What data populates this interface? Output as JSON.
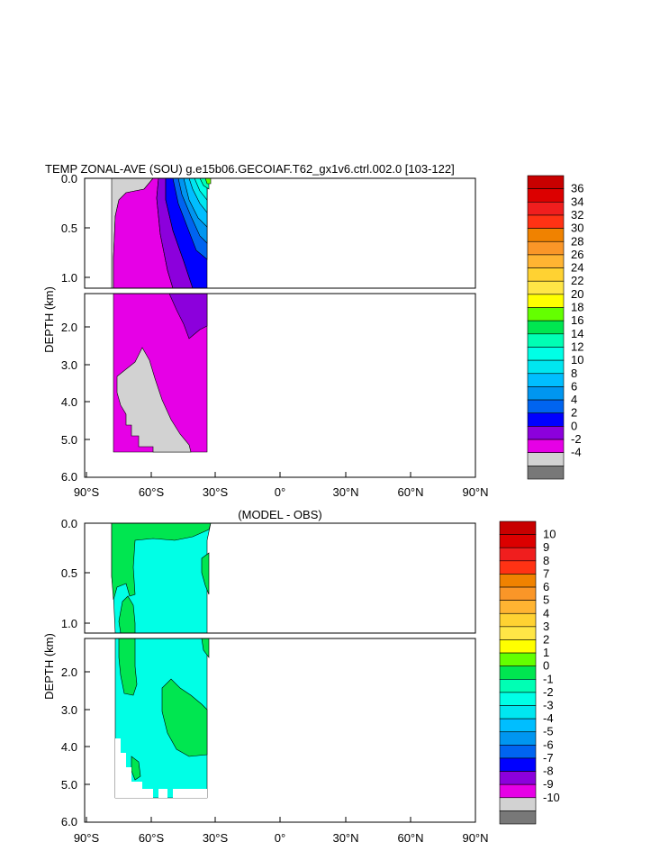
{
  "chart_data": [
    {
      "type": "contour",
      "title": "TEMP ZONAL-AVE (SOU) g.e15b06.GECOIAF.T62_gx1v6.ctrl.002.0 [103-122]",
      "ylabel": "DEPTH (km)",
      "xlabel": "",
      "x_range": [
        -90,
        90
      ],
      "y_range": [
        0,
        6
      ],
      "x_ticks": [
        "90°S",
        "60°S",
        "30°S",
        "0°",
        "30°N",
        "60°N",
        "90°N"
      ],
      "y_ticks_upper": [
        "0.0",
        "0.5",
        "1.0"
      ],
      "y_ticks_lower": [
        "2.0",
        "3.0",
        "4.0",
        "5.0",
        "6.0"
      ],
      "colorbar_levels": [
        "36",
        "34",
        "32",
        "30",
        "28",
        "26",
        "24",
        "22",
        "20",
        "18",
        "16",
        "14",
        "12",
        "10",
        "8",
        "6",
        "4",
        "2",
        "0",
        "-2",
        "-4"
      ],
      "colorbar_colors": [
        "#c80000",
        "#dc0000",
        "#f01e1e",
        "#ff3214",
        "#f08200",
        "#fa9628",
        "#ffb432",
        "#ffd232",
        "#ffe646",
        "#ffff00",
        "#64ff00",
        "#00e650",
        "#00ffb4",
        "#00ffe6",
        "#00e6f0",
        "#00beff",
        "#0096f0",
        "#0064f0",
        "#0000ff",
        "#8c00dc",
        "#e600e6",
        "#d2d2d2",
        "#787878"
      ]
    },
    {
      "type": "contour",
      "title": "(MODEL - OBS)",
      "ylabel": "DEPTH (km)",
      "xlabel": "",
      "x_range": [
        -90,
        90
      ],
      "y_range": [
        0,
        6
      ],
      "x_ticks": [
        "90°S",
        "60°S",
        "30°S",
        "0°",
        "30°N",
        "60°N",
        "90°N"
      ],
      "y_ticks_upper": [
        "0.0",
        "0.5",
        "1.0"
      ],
      "y_ticks_lower": [
        "2.0",
        "3.0",
        "4.0",
        "5.0",
        "6.0"
      ],
      "colorbar_levels": [
        "10",
        "9",
        "8",
        "7",
        "6",
        "5",
        "4",
        "3",
        "2",
        "1",
        "0",
        "-1",
        "-2",
        "-3",
        "-4",
        "-5",
        "-6",
        "-7",
        "-8",
        "-9",
        "-10"
      ],
      "colorbar_colors": [
        "#c80000",
        "#dc0000",
        "#f01e1e",
        "#ff3214",
        "#f08200",
        "#fa9628",
        "#ffb432",
        "#ffd232",
        "#ffe646",
        "#ffff00",
        "#64ff00",
        "#00e650",
        "#00ffb4",
        "#00ffe6",
        "#00e6f0",
        "#00beff",
        "#0096f0",
        "#0064f0",
        "#0000ff",
        "#8c00dc",
        "#e600e6",
        "#d2d2d2",
        "#787878"
      ]
    }
  ]
}
